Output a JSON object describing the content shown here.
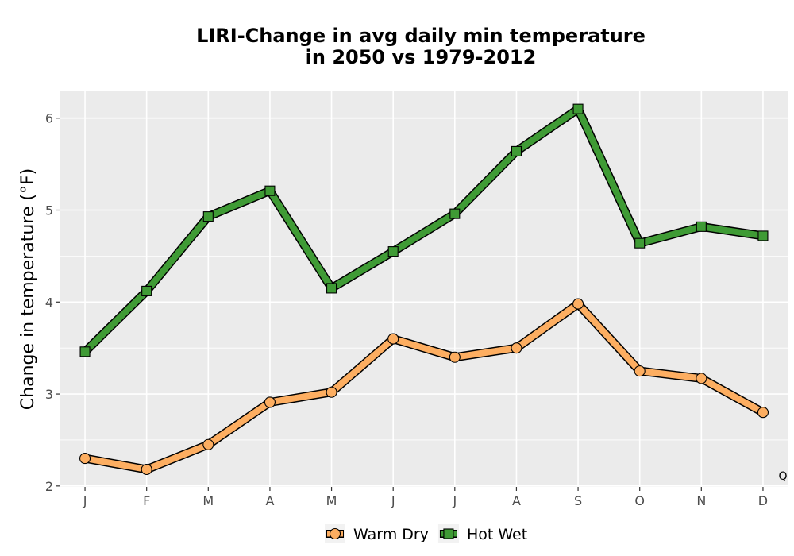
{
  "chart_data": {
    "type": "line",
    "title_lines": [
      "LIRI-Change in avg daily min temperature",
      "in 2050 vs 1979-2012"
    ],
    "xlabel": "",
    "ylabel": "Change in temperature (°F)",
    "categories": [
      "J",
      "F",
      "M",
      "A",
      "M",
      "J",
      "J",
      "A",
      "S",
      "O",
      "N",
      "D"
    ],
    "yticks": [
      "2",
      "3",
      "4",
      "5",
      "6"
    ],
    "ylim": [
      1.99,
      6.3
    ],
    "grid": true,
    "legend_position": "bottom",
    "corner_note": "Q",
    "series": [
      {
        "name": "Warm Dry",
        "marker": "circle",
        "color": "#fdae61",
        "values": [
          2.3,
          2.18,
          2.45,
          2.91,
          3.02,
          3.6,
          3.4,
          3.5,
          3.98,
          3.25,
          3.17,
          2.8
        ]
      },
      {
        "name": "Hot Wet",
        "marker": "square",
        "color": "#3f9b35",
        "values": [
          3.46,
          4.12,
          4.93,
          5.21,
          4.15,
          4.55,
          4.96,
          5.64,
          6.1,
          4.64,
          4.82,
          4.72
        ]
      }
    ],
    "colors": {
      "panel_bg": "#ebebeb",
      "grid": "#ffffff",
      "outline": "#000000"
    }
  }
}
